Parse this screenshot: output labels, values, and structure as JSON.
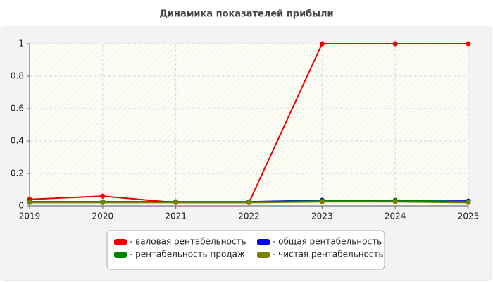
{
  "chart_data": {
    "type": "line",
    "title": "Динамика показателей прибыли",
    "x": [
      2019,
      2020,
      2021,
      2022,
      2023,
      2024,
      2025
    ],
    "xlim": [
      2019,
      2025
    ],
    "xticks": [
      2019,
      2020,
      2021,
      2022,
      2023,
      2024,
      2025
    ],
    "ylim": [
      0,
      1
    ],
    "yticks": [
      0,
      0.2,
      0.4,
      0.6,
      0.8,
      1
    ],
    "grid": true,
    "series": [
      {
        "name": "- валовая рентабельность",
        "color": "#ee0000",
        "values": [
          0.04,
          0.06,
          0.02,
          0.02,
          1,
          1,
          1
        ]
      },
      {
        "name": "- общая рентабельность",
        "color": "#0000ee",
        "values": [
          0.025,
          0.025,
          0.025,
          0.025,
          0.035,
          0.03,
          0.03
        ]
      },
      {
        "name": "- рентабельность продаж",
        "color": "#008000",
        "values": [
          0.025,
          0.025,
          0.025,
          0.025,
          0.03,
          0.035,
          0.025
        ]
      },
      {
        "name": "- чистая рентабельность",
        "color": "#808000",
        "values": [
          0.02,
          0.02,
          0.02,
          0.02,
          0.025,
          0.025,
          0.02
        ]
      }
    ]
  }
}
